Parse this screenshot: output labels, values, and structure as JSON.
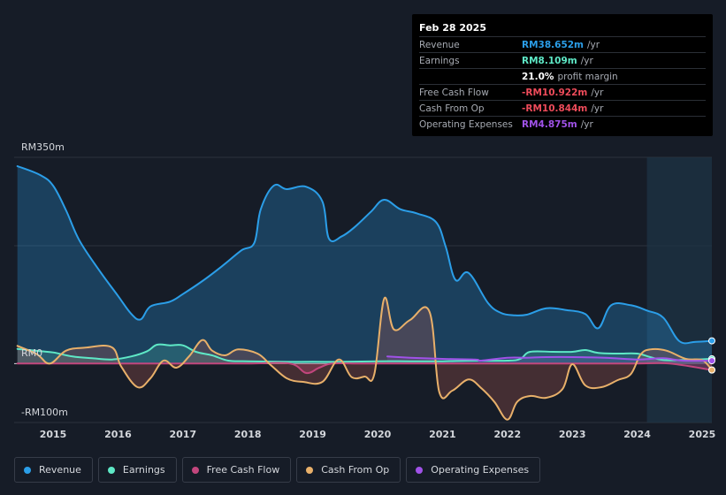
{
  "tooltip": {
    "date": "Feb 28 2025",
    "rows": [
      {
        "label": "Revenue",
        "value": "RM38.652m",
        "unit": "/yr",
        "color": "#2b9ee8"
      },
      {
        "label": "Earnings",
        "value": "RM8.109m",
        "unit": "/yr",
        "color": "#5ee8c6"
      },
      {
        "label": "",
        "value": "21.0%",
        "unit": "profit margin",
        "color": "#ffffff"
      },
      {
        "label": "Free Cash Flow",
        "value": "-RM10.922m",
        "unit": "/yr",
        "color": "#ee4b5a"
      },
      {
        "label": "Cash From Op",
        "value": "-RM10.844m",
        "unit": "/yr",
        "color": "#ee4b5a"
      },
      {
        "label": "Operating Expenses",
        "value": "RM4.875m",
        "unit": "/yr",
        "color": "#a052e8"
      }
    ]
  },
  "legend": [
    {
      "label": "Revenue",
      "color": "#2b9ee8"
    },
    {
      "label": "Earnings",
      "color": "#5ee8c6"
    },
    {
      "label": "Free Cash Flow",
      "color": "#c2467d"
    },
    {
      "label": "Cash From Op",
      "color": "#e8b06a"
    },
    {
      "label": "Operating Expenses",
      "color": "#a052e8"
    }
  ],
  "chart_data": {
    "type": "area",
    "title": "",
    "y_tick_labels": [
      "RM350m",
      "RM0",
      "-RM100m"
    ],
    "ylim": [
      -100,
      350
    ],
    "xlim": [
      2014.4,
      2025.15
    ],
    "x_tick_labels": [
      "2015",
      "2016",
      "2017",
      "2018",
      "2019",
      "2020",
      "2021",
      "2022",
      "2023",
      "2024",
      "2025"
    ],
    "x_tick_values": [
      2015,
      2016,
      2017,
      2018,
      2019,
      2020,
      2021,
      2022,
      2023,
      2024,
      2025
    ],
    "highlight_from": 2024.15,
    "series": [
      {
        "name": "Revenue",
        "color": "#2b9ee8",
        "x": [
          2014.45,
          2014.8,
          2015.0,
          2015.2,
          2015.4,
          2015.7,
          2016.0,
          2016.2,
          2016.35,
          2016.5,
          2016.8,
          2017.0,
          2017.3,
          2017.6,
          2017.9,
          2018.1,
          2018.2,
          2018.4,
          2018.6,
          2018.9,
          2019.15,
          2019.25,
          2019.45,
          2019.65,
          2019.9,
          2020.1,
          2020.35,
          2020.6,
          2020.9,
          2021.05,
          2021.2,
          2021.4,
          2021.7,
          2021.9,
          2022.1,
          2022.3,
          2022.6,
          2022.9,
          2023.2,
          2023.4,
          2023.6,
          2023.9,
          2024.15,
          2024.4,
          2024.65,
          2024.9,
          2025.15
        ],
        "y": [
          335,
          320,
          302,
          260,
          210,
          160,
          115,
          85,
          75,
          97,
          105,
          118,
          140,
          165,
          192,
          205,
          262,
          302,
          296,
          300,
          275,
          212,
          216,
          232,
          258,
          278,
          262,
          255,
          240,
          198,
          142,
          154,
          103,
          86,
          82,
          83,
          94,
          91,
          84,
          60,
          99,
          99,
          90,
          78,
          38,
          37,
          38.652
        ]
      },
      {
        "name": "Earnings",
        "color": "#5ee8c6",
        "x": [
          2014.45,
          2014.8,
          2015.0,
          2015.3,
          2015.6,
          2015.9,
          2016.2,
          2016.45,
          2016.6,
          2016.8,
          2017.0,
          2017.2,
          2017.45,
          2017.7,
          2018.0,
          2018.5,
          2019.0,
          2019.5,
          2020.0,
          2020.5,
          2021.0,
          2021.5,
          2022.0,
          2022.2,
          2022.35,
          2022.7,
          2023.0,
          2023.2,
          2023.4,
          2023.7,
          2024.0,
          2024.2,
          2024.4,
          2024.7,
          2025.15
        ],
        "y": [
          25,
          21,
          19,
          12,
          9,
          7,
          12,
          21,
          32,
          31,
          31,
          20,
          14,
          5,
          4,
          3,
          3,
          3,
          4,
          4,
          4,
          5,
          5,
          8,
          20,
          20,
          20,
          23,
          18,
          17,
          17,
          11,
          6,
          6,
          8.109
        ]
      },
      {
        "name": "Free Cash Flow",
        "color": "#c2467d",
        "x": [
          2014.45,
          2015.0,
          2016.0,
          2017.0,
          2018.0,
          2018.65,
          2018.9,
          2019.1,
          2019.3,
          2019.7,
          2020.0,
          2020.5,
          2021.0,
          2021.5,
          2022.0,
          2022.5,
          2023.0,
          2024.0,
          2024.5,
          2025.15
        ],
        "y": [
          0,
          0,
          0,
          0,
          0,
          0,
          -16,
          -7,
          0,
          0,
          0,
          0,
          0,
          0,
          0,
          0,
          0,
          0,
          0,
          -10.922
        ]
      },
      {
        "name": "Cash From Op",
        "color": "#e8b06a",
        "x": [
          2014.45,
          2014.75,
          2014.95,
          2015.2,
          2015.5,
          2015.9,
          2016.05,
          2016.3,
          2016.5,
          2016.7,
          2016.9,
          2017.1,
          2017.3,
          2017.45,
          2017.65,
          2017.85,
          2018.15,
          2018.35,
          2018.6,
          2018.85,
          2019.15,
          2019.4,
          2019.6,
          2019.8,
          2019.95,
          2020.1,
          2020.25,
          2020.5,
          2020.8,
          2020.95,
          2021.15,
          2021.4,
          2021.6,
          2021.8,
          2022.0,
          2022.15,
          2022.35,
          2022.6,
          2022.85,
          2023.0,
          2023.2,
          2023.45,
          2023.7,
          2023.9,
          2024.05,
          2024.2,
          2024.45,
          2024.75,
          2025.0,
          2025.15
        ],
        "y": [
          30,
          16,
          0,
          22,
          27,
          28,
          -5,
          -40,
          -25,
          5,
          -7,
          13,
          40,
          22,
          14,
          24,
          17,
          -2,
          -25,
          -31,
          -31,
          7,
          -23,
          -22,
          -18,
          110,
          58,
          74,
          88,
          -48,
          -46,
          -27,
          -42,
          -65,
          -95,
          -65,
          -55,
          -58,
          -43,
          -1,
          -37,
          -40,
          -28,
          -18,
          15,
          24,
          22,
          8,
          6,
          -10.844
        ]
      },
      {
        "name": "Operating Expenses",
        "color": "#a052e8",
        "x": [
          2020.15,
          2020.5,
          2021.0,
          2021.5,
          2021.6,
          2022.0,
          2022.3,
          2022.6,
          2023.0,
          2023.5,
          2024.0,
          2024.4,
          2024.7,
          2025.15
        ],
        "y": [
          12,
          10,
          8,
          7,
          5,
          10,
          10,
          11,
          11,
          10,
          7,
          9,
          5,
          4.875
        ]
      }
    ]
  }
}
